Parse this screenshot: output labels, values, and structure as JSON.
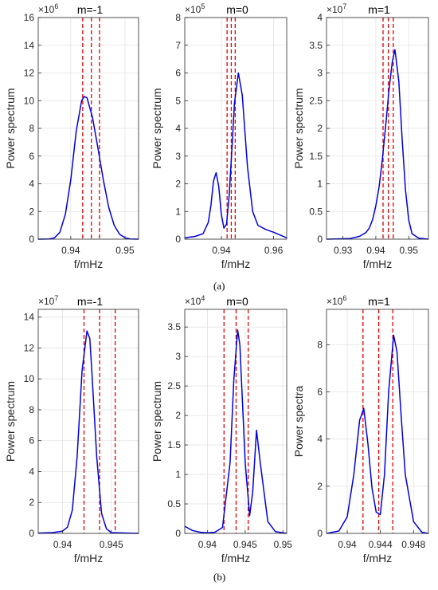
{
  "figure": {
    "caption_a": "(a)",
    "caption_b": "(b)"
  },
  "colors": {
    "curve": "#0000e0",
    "marker": "#e00000",
    "grid": "#e3e3e3",
    "axis": "#262626"
  },
  "chart_data": [
    {
      "type": "line",
      "title": "m=-1",
      "exponent_label": "×10",
      "exponent": "6",
      "xlabel": "f/mHz",
      "ylabel": "Power spectrum",
      "xlim": [
        0.934,
        0.9525
      ],
      "ylim": [
        0,
        16
      ],
      "xticks": [
        0.94,
        0.95
      ],
      "xtick_labels": [
        "0.94",
        "0.95"
      ],
      "yticks": [
        0,
        2,
        4,
        6,
        8,
        10,
        12,
        14,
        16
      ],
      "ytick_labels": [
        "0",
        "2",
        "4",
        "6",
        "8",
        "10",
        "12",
        "14",
        "16"
      ],
      "vlines": [
        0.9422,
        0.9438,
        0.9453
      ],
      "grid": true,
      "series": [
        {
          "x": [
            0.934,
            0.936,
            0.937,
            0.938,
            0.939,
            0.94,
            0.941,
            0.942,
            0.9425,
            0.943,
            0.944,
            0.945,
            0.946,
            0.947,
            0.948,
            0.949,
            0.95,
            0.951,
            0.9525
          ],
          "y": [
            0,
            0.02,
            0.1,
            0.5,
            1.8,
            4.3,
            7.8,
            10.0,
            10.3,
            10.2,
            8.8,
            6.6,
            4.3,
            2.3,
            1.0,
            0.35,
            0.1,
            0.02,
            0
          ]
        }
      ]
    },
    {
      "type": "line",
      "title": "m=0",
      "exponent_label": "×10",
      "exponent": "5",
      "xlabel": "f/mHz",
      "ylabel": "Power spectrum",
      "xlim": [
        0.926,
        0.965
      ],
      "ylim": [
        0,
        8
      ],
      "xticks": [
        0.94,
        0.96
      ],
      "xtick_labels": [
        "0.94",
        "0.96"
      ],
      "yticks": [
        0,
        1,
        2,
        3,
        4,
        5,
        6,
        7,
        8
      ],
      "ytick_labels": [
        "0",
        "1",
        "2",
        "3",
        "4",
        "5",
        "6",
        "7",
        "8"
      ],
      "vlines": [
        0.9422,
        0.9438,
        0.9453
      ],
      "grid": true,
      "series": [
        {
          "x": [
            0.926,
            0.93,
            0.933,
            0.935,
            0.936,
            0.937,
            0.938,
            0.939,
            0.94,
            0.941,
            0.942,
            0.943,
            0.944,
            0.945,
            0.9465,
            0.948,
            0.949,
            0.95,
            0.952,
            0.954,
            0.957,
            0.96,
            0.965
          ],
          "y": [
            0.05,
            0.1,
            0.2,
            0.6,
            1.2,
            2.1,
            2.4,
            1.9,
            0.9,
            0.4,
            0.55,
            1.6,
            3.2,
            4.9,
            6.0,
            5.2,
            3.9,
            2.6,
            1.0,
            0.5,
            0.35,
            0.25,
            0.05
          ]
        }
      ]
    },
    {
      "type": "line",
      "title": "m=1",
      "exponent_label": "×10",
      "exponent": "7",
      "xlabel": "f/mHz",
      "ylabel": "Power spectrum",
      "xlim": [
        0.925,
        0.956
      ],
      "ylim": [
        0,
        4
      ],
      "xticks": [
        0.93,
        0.94,
        0.95
      ],
      "xtick_labels": [
        "0.93",
        "0.94",
        "0.95"
      ],
      "yticks": [
        0,
        0.5,
        1,
        1.5,
        2,
        2.5,
        3,
        3.5,
        4
      ],
      "ytick_labels": [
        "0",
        "0.5",
        "1",
        "1.5",
        "2",
        "2.5",
        "3",
        "3.5",
        "4"
      ],
      "vlines": [
        0.9422,
        0.9438,
        0.9453
      ],
      "grid": true,
      "series": [
        {
          "x": [
            0.925,
            0.932,
            0.935,
            0.937,
            0.938,
            0.939,
            0.94,
            0.941,
            0.942,
            0.943,
            0.944,
            0.945,
            0.9458,
            0.947,
            0.948,
            0.949,
            0.95,
            0.951,
            0.953,
            0.956
          ],
          "y": [
            0,
            0.01,
            0.05,
            0.12,
            0.2,
            0.35,
            0.6,
            0.95,
            1.45,
            2.05,
            2.7,
            3.2,
            3.42,
            2.85,
            1.8,
            0.9,
            0.35,
            0.1,
            0.02,
            0
          ]
        }
      ]
    },
    {
      "type": "line",
      "title": "m=-1",
      "exponent_label": "×10",
      "exponent": "7",
      "xlabel": "f/mHz",
      "ylabel": "Power spectrum",
      "xlim": [
        0.9375,
        0.9478
      ],
      "ylim": [
        0,
        14.5
      ],
      "xticks": [
        0.94,
        0.945
      ],
      "xtick_labels": [
        "0.94",
        "0.945"
      ],
      "yticks": [
        0,
        2,
        4,
        6,
        8,
        10,
        12,
        14
      ],
      "ytick_labels": [
        "0",
        "2",
        "4",
        "6",
        "8",
        "10",
        "12",
        "14"
      ],
      "vlines": [
        0.9422,
        0.9438,
        0.9454
      ],
      "grid": true,
      "series": [
        {
          "x": [
            0.9375,
            0.939,
            0.94,
            0.9405,
            0.941,
            0.9415,
            0.942,
            0.9425,
            0.9428,
            0.943,
            0.9435,
            0.944,
            0.9445,
            0.945,
            0.9478
          ],
          "y": [
            0.02,
            0.05,
            0.15,
            0.4,
            1.5,
            5.0,
            10.5,
            13.1,
            12.6,
            10.5,
            5.0,
            1.3,
            0.3,
            0.05,
            0
          ]
        }
      ]
    },
    {
      "type": "line",
      "title": "m=0",
      "exponent_label": "×10",
      "exponent": "4",
      "xlabel": "f/mHz",
      "ylabel": "Power spectrum",
      "xlim": [
        0.937,
        0.9505
      ],
      "ylim": [
        0,
        3.8
      ],
      "xticks": [
        0.94,
        0.945,
        0.95
      ],
      "xtick_labels": [
        "0.94",
        "0.945",
        "0.95"
      ],
      "yticks": [
        0,
        0.5,
        1,
        1.5,
        2,
        2.5,
        3,
        3.5
      ],
      "ytick_labels": [
        "0",
        "0.5",
        "1",
        "1.5",
        "2",
        "2.5",
        "3",
        "3.5"
      ],
      "vlines": [
        0.9422,
        0.9438,
        0.9454
      ],
      "grid": true,
      "series": [
        {
          "x": [
            0.937,
            0.938,
            0.939,
            0.94,
            0.941,
            0.942,
            0.943,
            0.9435,
            0.944,
            0.9443,
            0.945,
            0.9456,
            0.946,
            0.9465,
            0.947,
            0.948,
            0.949,
            0.9505
          ],
          "y": [
            0.12,
            0.05,
            0.02,
            0.01,
            0.02,
            0.1,
            1.2,
            2.6,
            3.45,
            3.2,
            1.2,
            0.3,
            0.7,
            1.75,
            1.2,
            0.2,
            0.03,
            0
          ]
        }
      ]
    },
    {
      "type": "line",
      "title": "m=1",
      "exponent_label": "×10",
      "exponent": "6",
      "xlabel": "f/mHz",
      "ylabel": "Power spectra",
      "xlim": [
        0.9375,
        0.9498
      ],
      "ylim": [
        0,
        9.5
      ],
      "xticks": [
        0.94,
        0.944,
        0.948
      ],
      "xtick_labels": [
        "0.94",
        "0.944",
        "0.948"
      ],
      "yticks": [
        0,
        2,
        4,
        6,
        8
      ],
      "ytick_labels": [
        "0",
        "2",
        "4",
        "6",
        "8"
      ],
      "vlines": [
        0.9419,
        0.9438,
        0.9455
      ],
      "grid": true,
      "series": [
        {
          "x": [
            0.9375,
            0.939,
            0.94,
            0.9408,
            0.9415,
            0.942,
            0.9425,
            0.943,
            0.9435,
            0.944,
            0.9445,
            0.945,
            0.9456,
            0.946,
            0.9465,
            0.947,
            0.948,
            0.949,
            0.9498
          ],
          "y": [
            0,
            0.1,
            0.7,
            2.5,
            4.8,
            5.3,
            3.8,
            1.9,
            0.9,
            0.8,
            2.5,
            6.0,
            8.4,
            7.7,
            5.0,
            2.5,
            0.5,
            0.05,
            0
          ]
        }
      ]
    }
  ]
}
